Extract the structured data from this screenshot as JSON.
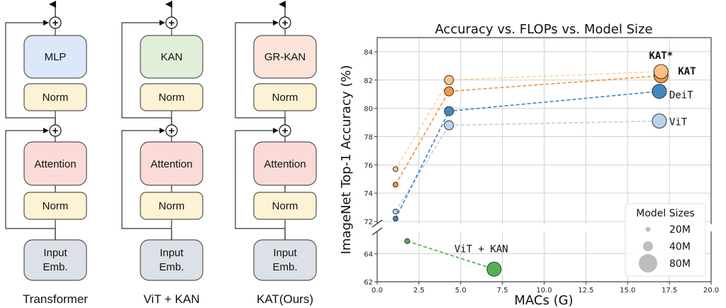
{
  "diagram": {
    "columns": [
      {
        "id": "transformer",
        "caption": "Transformer",
        "ffn_label": "MLP",
        "ffn_color": "#dce8fa",
        "norm_top_label": "Norm",
        "attention_label": "Attention",
        "norm_bottom_label": "Norm",
        "input_label_line1": "Input",
        "input_label_line2": "Emb."
      },
      {
        "id": "vit-kan",
        "caption": "ViT + KAN",
        "ffn_label": "KAN",
        "ffn_color": "#e1efd9",
        "norm_top_label": "Norm",
        "attention_label": "Attention",
        "norm_bottom_label": "Norm",
        "input_label_line1": "Input",
        "input_label_line2": "Emb."
      },
      {
        "id": "kat",
        "caption": "KAT(Ours)",
        "ffn_label": "GR-KAN",
        "ffn_color": "#fbe3d8",
        "norm_top_label": "Norm",
        "attention_label": "Attention",
        "norm_bottom_label": "Norm",
        "input_label_line1": "Input",
        "input_label_line2": "Emb."
      }
    ],
    "colors": {
      "norm": "#fdf2d3",
      "attention": "#fadbd7",
      "input": "#dce1e7",
      "stroke": "#555555"
    },
    "add_symbol": "+"
  },
  "chart_data": {
    "type": "scatter",
    "title": "Accuracy vs. FLOPs vs. Model Size",
    "xlabel": "MACs (G)",
    "ylabel": "ImageNet Top-1 Accuracy (%)",
    "xlim": [
      0,
      20
    ],
    "ylim_upper": [
      71.8,
      85.0
    ],
    "ylim_lower": [
      62,
      65.6
    ],
    "broken_y_axis": true,
    "grid": true,
    "x_ticks": [
      "0.0",
      "2.5",
      "5.0",
      "7.5",
      "10.0",
      "12.5",
      "15.0",
      "17.5",
      "20.0"
    ],
    "x_tick_values": [
      0,
      2.5,
      5,
      7.5,
      10,
      12.5,
      15,
      17.5,
      20
    ],
    "y_ticks_upper": [
      "72",
      "74",
      "76",
      "78",
      "80",
      "82",
      "84"
    ],
    "y_tick_values_upper": [
      72,
      74,
      76,
      78,
      80,
      82,
      84
    ],
    "y_ticks_lower": [
      "62",
      "64"
    ],
    "y_tick_values_lower": [
      62,
      64
    ],
    "series": [
      {
        "name": "KAT*",
        "color": "#fdc085",
        "line_alpha": 0.7,
        "label_bold": true,
        "points": [
          {
            "x": 1.1,
            "y": 75.7,
            "size": "20M"
          },
          {
            "x": 4.3,
            "y": 82.0,
            "size": "40M"
          },
          {
            "x": 17.0,
            "y": 82.6,
            "size": "80M"
          }
        ]
      },
      {
        "name": "KAT",
        "color": "#f5903a",
        "line_alpha": 1,
        "label_bold": true,
        "points": [
          {
            "x": 1.1,
            "y": 74.6,
            "size": "20M"
          },
          {
            "x": 4.3,
            "y": 81.2,
            "size": "40M"
          },
          {
            "x": 17.0,
            "y": 82.3,
            "size": "80M"
          }
        ]
      },
      {
        "name": "DeiT",
        "color": "#3a82be",
        "line_alpha": 1,
        "label_bold": false,
        "points": [
          {
            "x": 1.1,
            "y": 72.2,
            "size": "20M"
          },
          {
            "x": 4.3,
            "y": 79.8,
            "size": "40M"
          },
          {
            "x": 16.9,
            "y": 81.2,
            "size": "80M"
          }
        ]
      },
      {
        "name": "ViT",
        "color": "#b5cfea",
        "line_alpha": 1,
        "label_bold": false,
        "points": [
          {
            "x": 1.1,
            "y": 72.7,
            "size": "20M"
          },
          {
            "x": 4.3,
            "y": 78.8,
            "size": "40M"
          },
          {
            "x": 16.9,
            "y": 79.1,
            "size": "80M"
          }
        ]
      },
      {
        "name": "ViT + KAN",
        "color": "#4aad4a",
        "line_alpha": 1,
        "label_bold": false,
        "points": [
          {
            "x": 1.8,
            "y": 64.9,
            "size": "20M"
          },
          {
            "x": 7.0,
            "y": 62.9,
            "size": "80M"
          }
        ]
      }
    ],
    "annotations": [
      {
        "text": "KAT*",
        "series": "KAT*"
      },
      {
        "text": "KAT",
        "series": "KAT"
      },
      {
        "text": "DeiT",
        "series": "DeiT"
      },
      {
        "text": "ViT",
        "series": "ViT"
      },
      {
        "text": "ViT + KAN",
        "series": "ViT + KAN"
      }
    ],
    "legend": {
      "title": "Model Sizes",
      "position": "bottom-right",
      "entries": [
        "20M",
        "40M",
        "80M"
      ],
      "marker_color": "#bdbdbd"
    }
  }
}
